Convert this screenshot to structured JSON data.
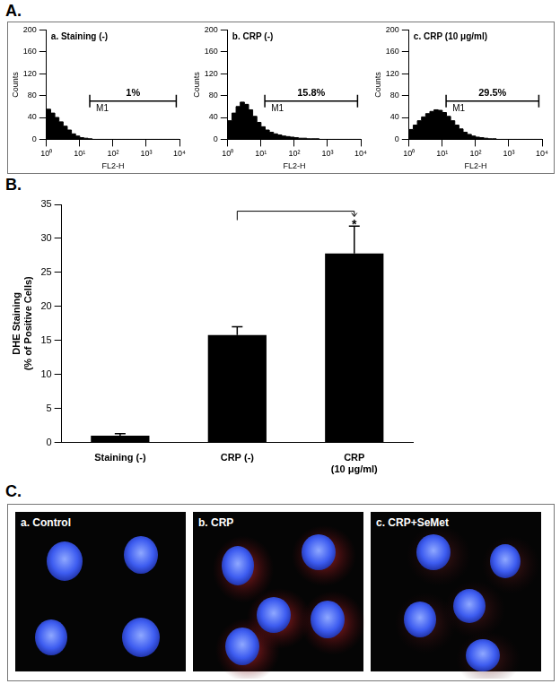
{
  "panel_labels": [
    "A.",
    "B.",
    "C."
  ],
  "chart_data": [
    {
      "type": "histogram",
      "title": "a. Staining (-)",
      "x_label": "FL2-H",
      "y_label": "Counts",
      "bins": [
        1,
        1.334,
        1.778,
        2.371,
        3.162,
        4.217,
        5.623,
        7.499,
        10,
        13.34,
        17.78,
        23.71,
        31.62,
        42.17,
        56.23,
        74.99,
        100,
        133.4,
        177.8,
        237.1,
        316.2,
        421.7,
        562.3,
        749.9,
        1000,
        1334,
        1778,
        2371,
        3162,
        4217,
        5623,
        7499,
        10000
      ],
      "counts": [
        50,
        55,
        48,
        40,
        32,
        24,
        17,
        10,
        6,
        3,
        2,
        1,
        0,
        0,
        0,
        0,
        0,
        0,
        0,
        0,
        0,
        0,
        0,
        0,
        0,
        0,
        0,
        0,
        0,
        0,
        0,
        0
      ],
      "log": "x",
      "xlim": [
        1,
        10000
      ],
      "xticks": [
        {
          "value": 1,
          "label": "10⁰"
        },
        {
          "value": 10,
          "label": "10¹"
        },
        {
          "value": 100,
          "label": "10²"
        },
        {
          "value": 1000,
          "label": "10³"
        },
        {
          "value": 10000,
          "label": "10⁴"
        }
      ],
      "ylim": [
        0,
        200
      ],
      "yticks": [
        0,
        40,
        80,
        120,
        160,
        200
      ],
      "grid": false,
      "color": "#000000",
      "gate": {
        "name": "M1",
        "range": [
          20,
          8000
        ],
        "height": 70,
        "value": 1,
        "value_label": "1%"
      }
    },
    {
      "type": "histogram",
      "title": "b. CRP (-)",
      "x_label": "FL2-H",
      "y_label": "Counts",
      "bins": [
        1,
        1.334,
        1.778,
        2.371,
        3.162,
        4.217,
        5.623,
        7.499,
        10,
        13.34,
        17.78,
        23.71,
        31.62,
        42.17,
        56.23,
        74.99,
        100,
        133.4,
        177.8,
        237.1,
        316.2,
        421.7,
        562.3,
        749.9,
        1000,
        1334,
        1778,
        2371,
        3162,
        4217,
        5623,
        7499,
        10000
      ],
      "counts": [
        20,
        34,
        48,
        60,
        68,
        64,
        54,
        42,
        31,
        23,
        17,
        13,
        10,
        8,
        6,
        5,
        4,
        3,
        2,
        2,
        1,
        1,
        1,
        0,
        0,
        0,
        0,
        0,
        0,
        0,
        0,
        0
      ],
      "log": "x",
      "xlim": [
        1,
        10000
      ],
      "xticks": [
        {
          "value": 1,
          "label": "10⁰"
        },
        {
          "value": 10,
          "label": "10¹"
        },
        {
          "value": 100,
          "label": "10²"
        },
        {
          "value": 1000,
          "label": "10³"
        },
        {
          "value": 10000,
          "label": "10⁴"
        }
      ],
      "ylim": [
        0,
        200
      ],
      "yticks": [
        0,
        40,
        80,
        120,
        160,
        200
      ],
      "grid": false,
      "color": "#000000",
      "gate": {
        "name": "M1",
        "range": [
          13,
          8000
        ],
        "height": 70,
        "value": 15.8,
        "value_label": "15.8%"
      }
    },
    {
      "type": "histogram",
      "title": "c. CRP (10 μg/ml)",
      "x_label": "FL2-H",
      "y_label": "Counts",
      "bins": [
        1,
        1.334,
        1.778,
        2.371,
        3.162,
        4.217,
        5.623,
        7.499,
        10,
        13.34,
        17.78,
        23.71,
        31.62,
        42.17,
        56.23,
        74.99,
        100,
        133.4,
        177.8,
        237.1,
        316.2,
        421.7,
        562.3,
        749.9,
        1000,
        1334,
        1778,
        2371,
        3162,
        4217,
        5623,
        7499,
        10000
      ],
      "counts": [
        10,
        18,
        26,
        34,
        41,
        47,
        51,
        54,
        53,
        49,
        42,
        34,
        26,
        19,
        13,
        9,
        6,
        4,
        3,
        2,
        1,
        1,
        0,
        0,
        0,
        0,
        0,
        0,
        0,
        0,
        0,
        0
      ],
      "log": "x",
      "xlim": [
        1,
        10000
      ],
      "xticks": [
        {
          "value": 1,
          "label": "10⁰"
        },
        {
          "value": 10,
          "label": "10¹"
        },
        {
          "value": 100,
          "label": "10²"
        },
        {
          "value": 1000,
          "label": "10³"
        },
        {
          "value": 10000,
          "label": "10⁴"
        }
      ],
      "ylim": [
        0,
        200
      ],
      "yticks": [
        0,
        40,
        80,
        120,
        160,
        200
      ],
      "grid": false,
      "color": "#000000",
      "gate": {
        "name": "M1",
        "range": [
          13,
          8000
        ],
        "height": 70,
        "value": 29.5,
        "value_label": "29.5%"
      }
    },
    {
      "type": "bar",
      "categories": [
        "Staining (-)",
        "CRP (-)",
        [
          "CRP",
          "(10 μg/ml)"
        ]
      ],
      "values": [
        1,
        15.8,
        27.8
      ],
      "errors": [
        0.3,
        1.2,
        4
      ],
      "y_label": [
        "DHE Staining",
        "(% of Positive Cells)"
      ],
      "ylim": [
        0,
        35
      ],
      "yticks": [
        0,
        5,
        10,
        15,
        20,
        25,
        30,
        35
      ],
      "grid": false,
      "color": "#000000",
      "significance": {
        "between": [
          1,
          2
        ],
        "y": 34,
        "label": "*"
      }
    }
  ],
  "images": {
    "titles": [
      "a. Control",
      "b. CRP",
      "c. CRP+SeMet"
    ]
  }
}
